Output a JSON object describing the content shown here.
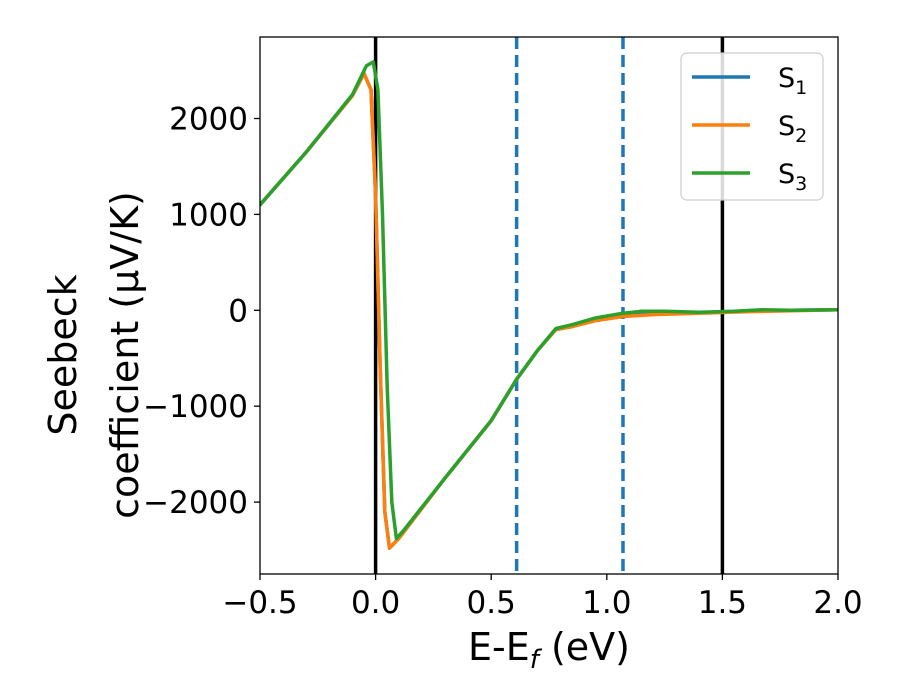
{
  "chart_data": {
    "type": "line",
    "xlabel": "E-E_f (eV)",
    "ylabel": "Seebeck coefficient (μV/K)",
    "xlim": [
      -0.5,
      2.0
    ],
    "ylim": [
      -2750,
      2850
    ],
    "xticks": [
      -0.5,
      0.0,
      0.5,
      1.0,
      1.5,
      2.0
    ],
    "xtick_labels": [
      "−0.5",
      "0.0",
      "0.5",
      "1.0",
      "1.5",
      "2.0"
    ],
    "yticks": [
      -2000,
      -1000,
      0,
      1000,
      2000
    ],
    "ytick_labels": [
      "−2000",
      "−1000",
      "0",
      "1000",
      "2000"
    ],
    "grid": false,
    "legend_position": "top-right",
    "vertical_lines": [
      {
        "x": 0.0,
        "style": "solid",
        "color": "#000000"
      },
      {
        "x": 0.61,
        "style": "dashed",
        "color": "#1f77b4"
      },
      {
        "x": 1.07,
        "style": "dashed",
        "color": "#1f77b4"
      },
      {
        "x": 1.5,
        "style": "solid",
        "color": "#000000"
      }
    ],
    "series": [
      {
        "name": "S1",
        "color": "#1f77b4",
        "points": [
          [
            -0.5,
            1100
          ],
          [
            -0.3,
            1650
          ],
          [
            -0.1,
            2240
          ],
          [
            -0.05,
            2470
          ],
          [
            -0.02,
            2300
          ],
          [
            0.0,
            1200
          ],
          [
            0.02,
            -600
          ],
          [
            0.04,
            -2100
          ],
          [
            0.06,
            -2480
          ],
          [
            0.1,
            -2380
          ],
          [
            0.3,
            -1750
          ],
          [
            0.5,
            -1150
          ],
          [
            0.61,
            -720
          ],
          [
            0.7,
            -420
          ],
          [
            0.78,
            -200
          ],
          [
            0.85,
            -170
          ],
          [
            0.95,
            -100
          ],
          [
            1.07,
            -50
          ],
          [
            1.2,
            -35
          ],
          [
            1.4,
            -25
          ],
          [
            1.6,
            -10
          ],
          [
            1.8,
            0
          ],
          [
            2.0,
            5
          ]
        ]
      },
      {
        "name": "S2",
        "color": "#ff7f0e",
        "points": [
          [
            -0.5,
            1100
          ],
          [
            -0.3,
            1650
          ],
          [
            -0.1,
            2240
          ],
          [
            -0.05,
            2470
          ],
          [
            -0.02,
            2300
          ],
          [
            0.0,
            1200
          ],
          [
            0.02,
            -600
          ],
          [
            0.04,
            -2100
          ],
          [
            0.06,
            -2480
          ],
          [
            0.1,
            -2380
          ],
          [
            0.3,
            -1750
          ],
          [
            0.5,
            -1150
          ],
          [
            0.61,
            -720
          ],
          [
            0.7,
            -420
          ],
          [
            0.78,
            -200
          ],
          [
            0.85,
            -170
          ],
          [
            0.95,
            -110
          ],
          [
            1.07,
            -65
          ],
          [
            1.2,
            -45
          ],
          [
            1.4,
            -30
          ],
          [
            1.6,
            -15
          ],
          [
            1.8,
            -5
          ],
          [
            2.0,
            5
          ]
        ]
      },
      {
        "name": "S3",
        "color": "#2ca02c",
        "points": [
          [
            -0.5,
            1100
          ],
          [
            -0.3,
            1650
          ],
          [
            -0.1,
            2250
          ],
          [
            -0.04,
            2550
          ],
          [
            -0.01,
            2590
          ],
          [
            0.01,
            2300
          ],
          [
            0.03,
            1000
          ],
          [
            0.05,
            -800
          ],
          [
            0.07,
            -2000
          ],
          [
            0.09,
            -2380
          ],
          [
            0.12,
            -2300
          ],
          [
            0.3,
            -1750
          ],
          [
            0.5,
            -1150
          ],
          [
            0.61,
            -720
          ],
          [
            0.7,
            -420
          ],
          [
            0.78,
            -190
          ],
          [
            0.85,
            -150
          ],
          [
            0.95,
            -80
          ],
          [
            1.07,
            -30
          ],
          [
            1.15,
            -10
          ],
          [
            1.25,
            -10
          ],
          [
            1.4,
            -20
          ],
          [
            1.55,
            -10
          ],
          [
            1.67,
            5
          ],
          [
            1.8,
            0
          ],
          [
            2.0,
            5
          ]
        ]
      }
    ]
  }
}
